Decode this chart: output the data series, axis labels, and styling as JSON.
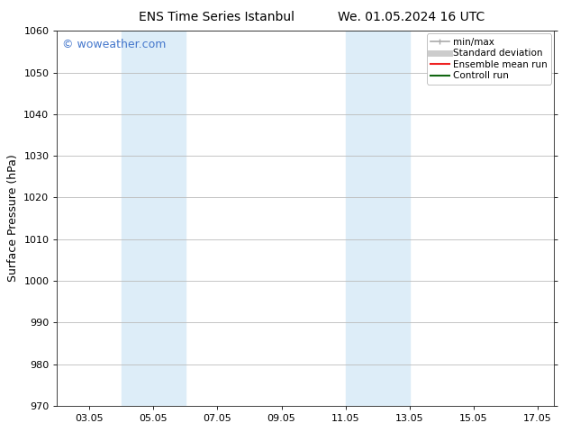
{
  "title_left": "ENS Time Series Istanbul",
  "title_right": "We. 01.05.2024 16 UTC",
  "ylabel": "Surface Pressure (hPa)",
  "ylim": [
    970,
    1060
  ],
  "yticks": [
    970,
    980,
    990,
    1000,
    1010,
    1020,
    1030,
    1040,
    1050,
    1060
  ],
  "xlim_start": 2.0,
  "xlim_end": 17.5,
  "xtick_labels": [
    "03.05",
    "05.05",
    "07.05",
    "09.05",
    "11.05",
    "13.05",
    "15.05",
    "17.05"
  ],
  "xtick_positions": [
    3,
    5,
    7,
    9,
    11,
    13,
    15,
    17
  ],
  "shaded_bands": [
    {
      "x_start": 4.0,
      "x_end": 6.0,
      "color": "#ddedf8"
    },
    {
      "x_start": 11.0,
      "x_end": 13.0,
      "color": "#ddedf8"
    }
  ],
  "watermark_text": "© woweather.com",
  "watermark_color": "#4477cc",
  "legend_items": [
    {
      "label": "min/max",
      "color": "#aaaaaa",
      "lw": 1.2
    },
    {
      "label": "Standard deviation",
      "color": "#cccccc",
      "lw": 5
    },
    {
      "label": "Ensemble mean run",
      "color": "#ee2222",
      "lw": 1.5
    },
    {
      "label": "Controll run",
      "color": "#116611",
      "lw": 1.5
    }
  ],
  "bg_color": "#ffffff",
  "grid_color": "#bbbbbb",
  "title_fontsize": 10,
  "label_fontsize": 9,
  "tick_fontsize": 8,
  "watermark_fontsize": 9,
  "legend_fontsize": 7.5
}
